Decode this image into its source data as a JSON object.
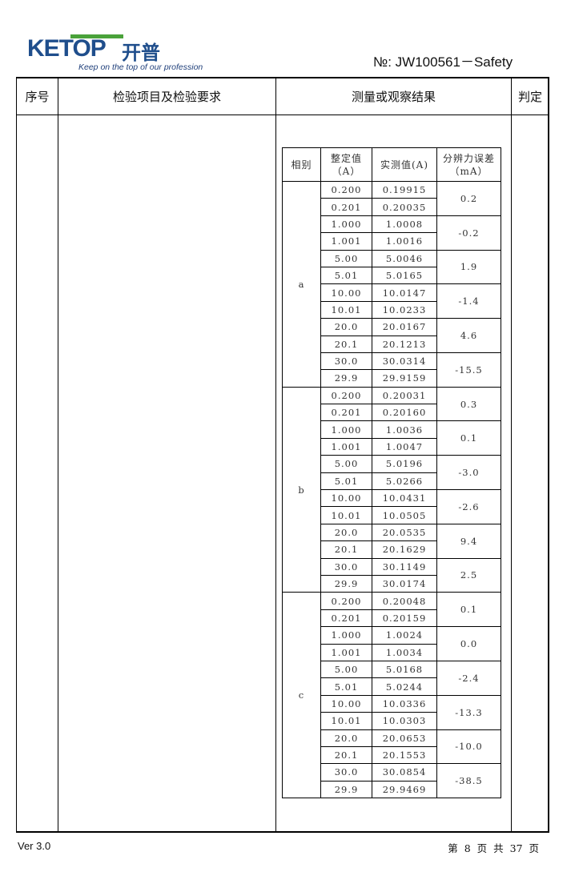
{
  "header": {
    "logo_text": "KETOP",
    "logo_cn": "开普",
    "slogan": "Keep on the top of our profession",
    "doc_number": "№:  JW100561－Safety",
    "brand_color": "#1f4e8c",
    "accent_color": "#4aa23a"
  },
  "table_headers": [
    "序号",
    "检验项目及检验要求",
    "测量或观察结果",
    "判定"
  ],
  "measurement": {
    "headers": [
      "相别",
      "整定值（A）",
      "实测值(A)",
      "分辨力误差（mA）"
    ],
    "phases": [
      {
        "phase": "a",
        "groups": [
          {
            "set": [
              "0.200",
              "0.201"
            ],
            "meas": [
              "0.19915",
              "0.20035"
            ],
            "err": "0.2"
          },
          {
            "set": [
              "1.000",
              "1.001"
            ],
            "meas": [
              "1.0008",
              "1.0016"
            ],
            "err": "-0.2"
          },
          {
            "set": [
              "5.00",
              "5.01"
            ],
            "meas": [
              "5.0046",
              "5.0165"
            ],
            "err": "1.9"
          },
          {
            "set": [
              "10.00",
              "10.01"
            ],
            "meas": [
              "10.0147",
              "10.0233"
            ],
            "err": "-1.4"
          },
          {
            "set": [
              "20.0",
              "20.1"
            ],
            "meas": [
              "20.0167",
              "20.1213"
            ],
            "err": "4.6"
          },
          {
            "set": [
              "30.0",
              "29.9"
            ],
            "meas": [
              "30.0314",
              "29.9159"
            ],
            "err": "-15.5"
          }
        ]
      },
      {
        "phase": "b",
        "groups": [
          {
            "set": [
              "0.200",
              "0.201"
            ],
            "meas": [
              "0.20031",
              "0.20160"
            ],
            "err": "0.3"
          },
          {
            "set": [
              "1.000",
              "1.001"
            ],
            "meas": [
              "1.0036",
              "1.0047"
            ],
            "err": "0.1"
          },
          {
            "set": [
              "5.00",
              "5.01"
            ],
            "meas": [
              "5.0196",
              "5.0266"
            ],
            "err": "-3.0"
          },
          {
            "set": [
              "10.00",
              "10.01"
            ],
            "meas": [
              "10.0431",
              "10.0505"
            ],
            "err": "-2.6"
          },
          {
            "set": [
              "20.0",
              "20.1"
            ],
            "meas": [
              "20.0535",
              "20.1629"
            ],
            "err": "9.4"
          },
          {
            "set": [
              "30.0",
              "29.9"
            ],
            "meas": [
              "30.1149",
              "30.0174"
            ],
            "err": "2.5"
          }
        ]
      },
      {
        "phase": "c",
        "groups": [
          {
            "set": [
              "0.200",
              "0.201"
            ],
            "meas": [
              "0.20048",
              "0.20159"
            ],
            "err": "0.1"
          },
          {
            "set": [
              "1.000",
              "1.001"
            ],
            "meas": [
              "1.0024",
              "1.0034"
            ],
            "err": "0.0"
          },
          {
            "set": [
              "5.00",
              "5.01"
            ],
            "meas": [
              "5.0168",
              "5.0244"
            ],
            "err": "-2.4"
          },
          {
            "set": [
              "10.00",
              "10.01"
            ],
            "meas": [
              "10.0336",
              "10.0303"
            ],
            "err": "-13.3"
          },
          {
            "set": [
              "20.0",
              "20.1"
            ],
            "meas": [
              "20.0653",
              "20.1553"
            ],
            "err": "-10.0"
          },
          {
            "set": [
              "30.0",
              "29.9"
            ],
            "meas": [
              "30.0854",
              "29.9469"
            ],
            "err": "-38.5"
          }
        ]
      }
    ]
  },
  "footer": {
    "version": "Ver  3.0",
    "page": "第 8 页 共 37 页"
  }
}
